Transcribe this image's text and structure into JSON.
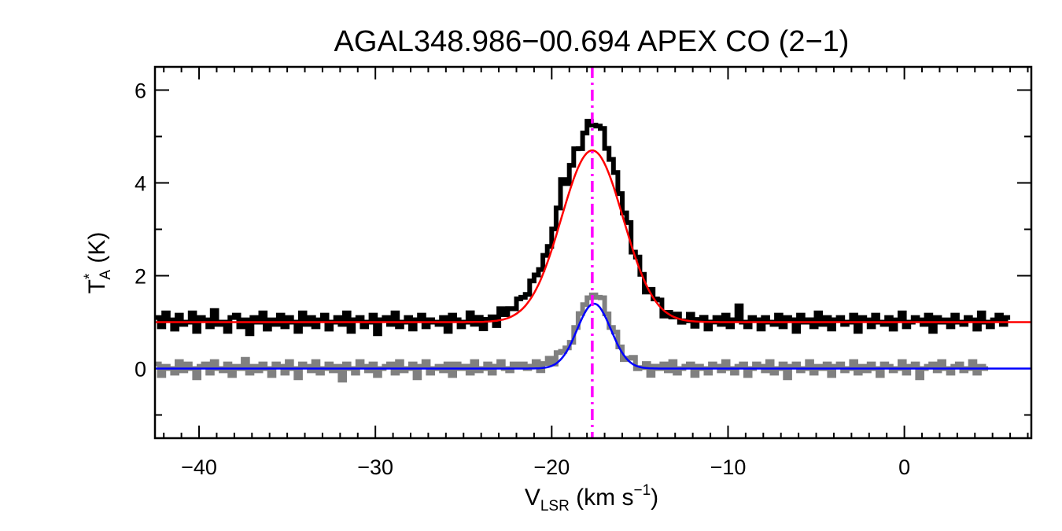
{
  "chart_data": {
    "type": "line",
    "title": "AGAL348.986−00.694  APEX CO (2−1)",
    "xlabel": {
      "main": "V",
      "sub": "LSR",
      "unit_pre": " (km s",
      "unit_sup": "−1",
      "unit_post": ")"
    },
    "ylabel": {
      "main": "T",
      "sup": "*",
      "sub": "A",
      "unit": " (K)"
    },
    "xlim": [
      -42.5,
      7.2
    ],
    "ylim": [
      -1.5,
      6.5
    ],
    "x_ticks": [
      -40,
      -30,
      -20,
      -10,
      0
    ],
    "x_tick_labels": [
      "−40",
      "−30",
      "−20",
      "−10",
      "0"
    ],
    "y_ticks": [
      0,
      2,
      4,
      6
    ],
    "y_tick_labels": [
      "0",
      "2",
      "4",
      "6"
    ],
    "vline": {
      "x": -17.7,
      "color": "#ff00ff",
      "style": "dash-dot"
    },
    "series": [
      {
        "kind": "step",
        "color": "#000000",
        "baseline_offset": 1.0,
        "x_start": -42.5,
        "x_step": 0.25,
        "noise": [
          0.1,
          -0.1,
          0.2,
          0.05,
          -0.15,
          0.15,
          -0.05,
          0.0,
          0.2,
          -0.2,
          0.1,
          0.05,
          -0.1,
          0.25,
          -0.05,
          0.0,
          -0.2,
          0.1,
          0.15,
          -0.1,
          0.05,
          -0.25,
          0.1,
          0.0,
          0.2,
          -0.15,
          0.05,
          -0.05,
          0.15,
          -0.1,
          0.1,
          0.0,
          -0.2,
          0.2,
          -0.05,
          0.1,
          -0.1,
          0.05,
          0.15,
          -0.15,
          0.0,
          0.1,
          -0.05,
          0.2,
          -0.2,
          0.05,
          0.1,
          -0.1,
          0.0,
          0.15,
          -0.25,
          0.05,
          0.1,
          -0.05,
          0.2,
          -0.1,
          0.0,
          0.1,
          -0.15,
          0.05,
          0.15,
          -0.1,
          0.05,
          0.0,
          -0.05,
          0.1,
          -0.2,
          0.15,
          0.05,
          -0.1,
          0.0,
          0.2,
          -0.05,
          0.1,
          -0.15,
          0.05,
          0.1,
          -0.1,
          0.25,
          0.1,
          0.2,
          0.15,
          0.3,
          0.25,
          0.2,
          0.35,
          0.3,
          0.2,
          0.25,
          0.15,
          0.2,
          0.3,
          0.55,
          0.1,
          0.15,
          0.2,
          -0.05,
          0.1,
          0.25,
          0.15,
          0.2,
          0.3,
          0.1,
          0.15,
          0.2,
          0.1,
          0.05,
          0.2,
          -0.1,
          0.1,
          0.0,
          -0.15,
          0.1,
          0.05,
          0.15,
          -0.1,
          0.05,
          0.0,
          0.1,
          -0.05,
          0.0,
          0.15,
          -0.1,
          0.05,
          0.1,
          -0.15,
          0.0,
          0.1,
          -0.05,
          0.15,
          -0.1,
          0.05,
          0.35,
          0.0,
          -0.1,
          0.1,
          0.05,
          -0.15,
          0.1,
          0.0,
          -0.05,
          0.15,
          -0.1,
          0.1,
          0.05,
          -0.2,
          0.15,
          0.0,
          0.05,
          -0.1,
          0.2,
          -0.05,
          0.1,
          -0.15,
          0.05,
          0.1,
          -0.05,
          0.0,
          0.15,
          -0.2,
          0.1,
          0.05,
          -0.1,
          0.15,
          0.0,
          -0.05,
          0.1,
          -0.15,
          0.05,
          0.2,
          -0.1,
          0.0,
          0.1,
          0.05,
          -0.05,
          0.15,
          -0.2,
          0.1,
          0.0,
          0.05,
          -0.1,
          0.15,
          0.0,
          -0.05,
          0.1,
          0.05,
          -0.15,
          0.2,
          0.0,
          -0.1,
          0.05,
          0.15,
          -0.05,
          0.1
        ]
      },
      {
        "kind": "step",
        "color": "#808080",
        "baseline_offset": 0.0,
        "x_start": -42.5,
        "x_step": 0.25,
        "noise": [
          0.1,
          -0.15,
          0.05,
          0.0,
          -0.1,
          0.15,
          -0.05,
          0.1,
          0.0,
          -0.2,
          0.05,
          0.1,
          -0.1,
          0.15,
          0.0,
          -0.05,
          0.1,
          -0.15,
          0.05,
          0.0,
          0.2,
          -0.1,
          0.05,
          -0.05,
          0.1,
          0.0,
          -0.15,
          0.1,
          0.05,
          -0.1,
          0.15,
          0.0,
          -0.2,
          0.1,
          0.05,
          -0.05,
          0.15,
          -0.1,
          0.0,
          0.1,
          -0.05,
          0.05,
          -0.25,
          0.1,
          0.0,
          -0.1,
          0.15,
          0.05,
          -0.05,
          0.1,
          -0.15,
          0.0,
          0.05,
          0.1,
          -0.1,
          0.15,
          -0.05,
          0.0,
          0.1,
          -0.2,
          0.05,
          0.15,
          -0.1,
          0.0,
          0.05,
          -0.05,
          0.1,
          -0.15,
          0.1,
          0.0,
          0.05,
          -0.1,
          0.15,
          -0.05,
          0.0,
          0.1,
          -0.1,
          0.05,
          0.15,
          0.0,
          -0.05,
          0.1,
          0.05,
          0.1,
          0.0,
          0.05,
          0.15,
          -0.05,
          0.1,
          0.2,
          0.05,
          0.25,
          0.2,
          0.15,
          0.1,
          0.2,
          0.25,
          0.2,
          0.15,
          0.1,
          0.05,
          0.15,
          0.0,
          -0.05,
          0.1,
          0.0,
          -0.1,
          0.05,
          0.15,
          -0.05,
          0.0,
          0.1,
          -0.15,
          0.05,
          0.0,
          0.1,
          -0.05,
          0.15,
          -0.1,
          0.0,
          0.05,
          0.1,
          -0.15,
          0.05,
          0.0,
          -0.1,
          0.1,
          0.05,
          -0.05,
          0.15,
          0.0,
          -0.1,
          0.05,
          0.1,
          -0.15,
          0.0,
          0.1,
          0.05,
          -0.05,
          0.15,
          -0.1,
          0.0,
          0.1,
          -0.2,
          0.05,
          0.1,
          -0.05,
          0.0,
          0.15,
          -0.1,
          0.05,
          0.0,
          0.1,
          -0.15,
          0.05,
          0.1,
          -0.05,
          0.0,
          0.15,
          -0.1,
          0.05,
          -0.05,
          0.1,
          0.0,
          -0.15,
          0.1,
          0.05,
          -0.05,
          0.0,
          0.15,
          -0.1,
          0.05,
          0.1,
          -0.2,
          0.0,
          0.05,
          0.1,
          -0.05,
          0.15,
          0.0,
          -0.1,
          0.05,
          0.1,
          -0.05,
          0.0,
          0.15,
          -0.1,
          0.05,
          0.0
        ]
      },
      {
        "kind": "gaussian",
        "color": "#ff0000",
        "baseline": 1.0,
        "amplitude": 3.7,
        "center": -17.7,
        "sigma": 1.75
      },
      {
        "kind": "gaussian",
        "color": "#0000ff",
        "baseline": 0.0,
        "amplitude": 1.4,
        "center": -17.6,
        "sigma": 0.95
      }
    ],
    "spectral_peaks": {
      "black": {
        "amplitude": 4.1,
        "center": -17.7,
        "sigma": 1.7
      },
      "gray": {
        "amplitude": 1.5,
        "center": -17.5,
        "sigma": 0.9
      }
    }
  }
}
